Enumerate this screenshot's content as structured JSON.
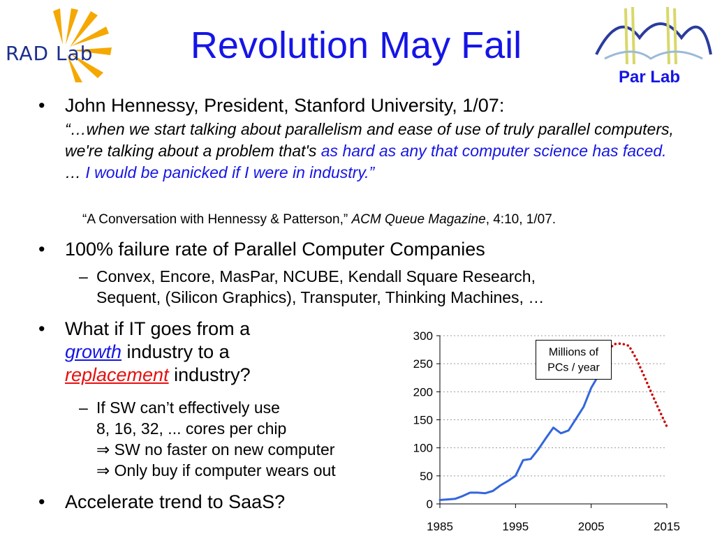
{
  "title": "Revolution May Fail",
  "logos": {
    "radlab_text": "RAD Lab",
    "parlab_text": "Par Lab"
  },
  "bullets": {
    "b1": {
      "marker": "•",
      "lead": "John Hennessy, President, Stanford University, 1/07:",
      "quote_part1": "“…when we start talking about parallelism and ease of use of truly parallel computers, we're talking about a problem that's ",
      "quote_highlight1": "as hard as any that computer science has faced.",
      "quote_part2": " … ",
      "quote_highlight2": "I would be panicked if I were in industry.”",
      "citation_a": "“A Conversation with Hennessy & Patterson,” ",
      "citation_b": "ACM Queue Magazine",
      "citation_c": ", 4:10, 1/07."
    },
    "b2": {
      "marker": "•",
      "text": "100% failure rate of Parallel Computer Companies",
      "sub_marker": "–",
      "sub_line1": "Convex, Encore, MasPar, NCUBE, Kendall Square Research,",
      "sub_line2": "Sequent, (Silicon Graphics), Transputer, Thinking Machines, …"
    },
    "b3": {
      "marker": "•",
      "line1": "What if IT goes from a",
      "growth": "growth",
      "line2_rest": " industry to a",
      "replacement": "replacement",
      "line3_rest": " industry?",
      "sub_marker": "–",
      "sub_line1": "If SW can’t effectively use",
      "sub_line2": "8, 16, 32, ... cores per chip",
      "implies": "⇒",
      "sub_line3": " SW no faster on new computer",
      "sub_line4": " Only buy if computer wears out"
    },
    "b4": {
      "marker": "•",
      "text": "Accelerate trend to SaaS?"
    }
  },
  "chart_data": {
    "type": "line",
    "annotation": "Millions of PCs / year",
    "annotation_line1": "Millions of",
    "annotation_line2": "PCs / year",
    "xlim": [
      1985,
      2015
    ],
    "ylim": [
      0,
      300
    ],
    "x_ticks": [
      "1985",
      "1995",
      "2005",
      "2015"
    ],
    "y_ticks": [
      "0",
      "50",
      "100",
      "150",
      "200",
      "250",
      "300"
    ],
    "grid": "horizontal-dotted",
    "series": [
      {
        "style": "solid",
        "color": "#3366dd",
        "x": [
          1985,
          1986,
          1987,
          1988,
          1989,
          1990,
          1991,
          1992,
          1993,
          1994,
          1995,
          1996,
          1997,
          1998,
          1999,
          2000,
          2001,
          2002,
          2003,
          2004,
          2005,
          2006,
          2007
        ],
        "y": [
          7,
          8,
          9,
          14,
          20,
          20,
          19,
          23,
          33,
          41,
          50,
          78,
          80,
          97,
          117,
          136,
          126,
          131,
          152,
          173,
          207,
          230,
          270
        ]
      },
      {
        "style": "dotted",
        "color": "#cc0000",
        "x": [
          2007,
          2008,
          2009,
          2010,
          2011,
          2012,
          2013,
          2014,
          2015
        ],
        "y": [
          270,
          285,
          286,
          282,
          258,
          228,
          197,
          167,
          138
        ]
      }
    ]
  }
}
